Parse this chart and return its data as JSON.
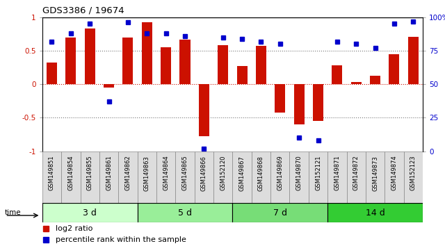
{
  "title": "GDS3386 / 19674",
  "samples": [
    "GSM149851",
    "GSM149854",
    "GSM149855",
    "GSM149861",
    "GSM149862",
    "GSM149863",
    "GSM149864",
    "GSM149865",
    "GSM149866",
    "GSM152120",
    "GSM149867",
    "GSM149868",
    "GSM149869",
    "GSM149870",
    "GSM152121",
    "GSM149871",
    "GSM149872",
    "GSM149873",
    "GSM149874",
    "GSM152123"
  ],
  "log2_ratio": [
    0.32,
    0.7,
    0.83,
    -0.05,
    0.7,
    0.93,
    0.55,
    0.67,
    -0.77,
    0.58,
    0.27,
    0.57,
    -0.42,
    -0.6,
    -0.55,
    0.28,
    0.03,
    0.13,
    0.45,
    0.71
  ],
  "percentile_rank": [
    82,
    88,
    95,
    37,
    96,
    88,
    88,
    86,
    2,
    85,
    84,
    82,
    80,
    10,
    8,
    82,
    80,
    77,
    95,
    97
  ],
  "groups": [
    {
      "label": "3 d",
      "start": 0,
      "end": 5,
      "color": "#ccffcc"
    },
    {
      "label": "5 d",
      "start": 5,
      "end": 10,
      "color": "#99ee99"
    },
    {
      "label": "7 d",
      "start": 10,
      "end": 15,
      "color": "#77dd77"
    },
    {
      "label": "14 d",
      "start": 15,
      "end": 20,
      "color": "#33cc33"
    }
  ],
  "bar_color": "#cc1100",
  "dot_color": "#0000cc",
  "ylim": [
    -1.0,
    1.0
  ],
  "y2lim": [
    0,
    100
  ],
  "yticks": [
    -1.0,
    -0.5,
    0.0,
    0.5,
    1.0
  ],
  "ytick_labels": [
    "-1",
    "-0.5",
    "0",
    "0.5",
    "1"
  ],
  "y2ticks": [
    0,
    25,
    50,
    75,
    100
  ],
  "y2tick_labels": [
    "0",
    "25",
    "50",
    "75",
    "100%"
  ],
  "zero_line_color": "#cc1100",
  "dotted_line_color": "#777777",
  "legend_items": [
    {
      "label": "log2 ratio",
      "color": "#cc1100"
    },
    {
      "label": "percentile rank within the sample",
      "color": "#0000cc"
    }
  ],
  "bar_width": 0.55,
  "sample_cell_color": "#dddddd",
  "sample_cell_border": "#888888"
}
